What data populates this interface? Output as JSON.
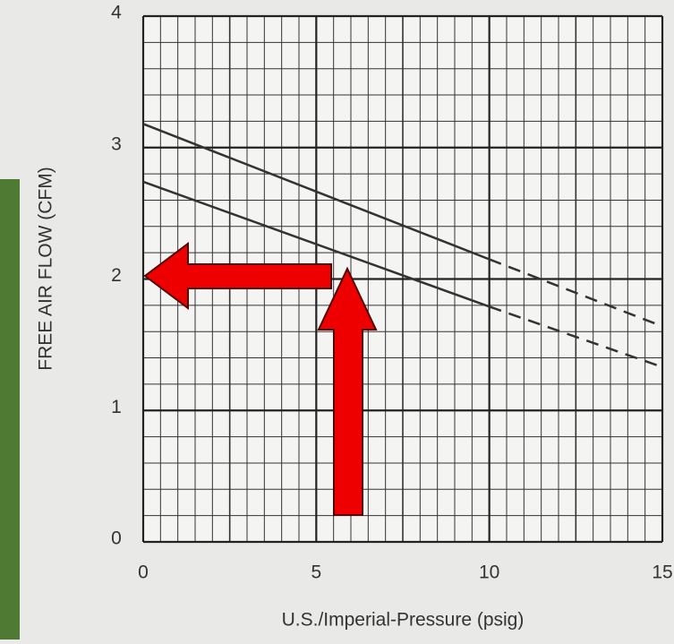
{
  "chart_data": {
    "type": "line",
    "xlabel": "U.S./Imperial-Pressure (psig)",
    "ylabel": "FREE AIR FLOW (CFM)",
    "x": [
      0,
      10,
      15
    ],
    "series": [
      {
        "color": "#333333",
        "style": "solid",
        "values": [
          3.18,
          2.15,
          null
        ]
      },
      {
        "color": "#333333",
        "style": "dashed",
        "values": [
          null,
          2.15,
          1.64
        ]
      },
      {
        "color": "#333333",
        "style": "solid",
        "values": [
          2.74,
          1.79,
          null
        ]
      },
      {
        "color": "#333333",
        "style": "dashed",
        "values": [
          null,
          1.79,
          1.33
        ]
      }
    ],
    "xlim": [
      0,
      15
    ],
    "ylim": [
      0,
      4
    ],
    "xticks": [
      0,
      5,
      10,
      15
    ],
    "yticks": [
      0,
      1,
      2,
      3,
      4
    ],
    "grid": true
  }
}
